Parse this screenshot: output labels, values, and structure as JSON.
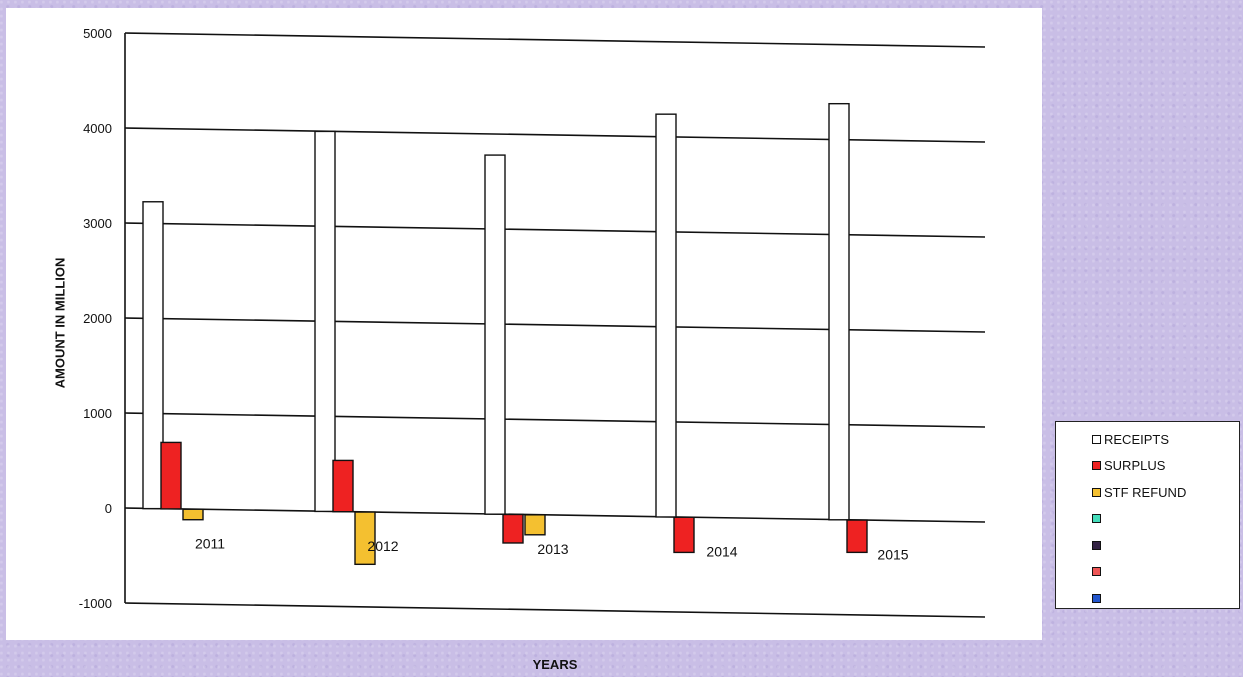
{
  "chart_data": {
    "type": "bar",
    "categories": [
      "2011",
      "2012",
      "2013",
      "2014",
      "2015"
    ],
    "series": [
      {
        "name": "RECEIPTS",
        "color": "#ffffff",
        "values": [
          3230,
          4000,
          3780,
          4240,
          4380
        ]
      },
      {
        "name": "SURPLUS",
        "color": "#ee2222",
        "values": [
          700,
          540,
          -300,
          -370,
          -340
        ]
      },
      {
        "name": "STF REFUND",
        "color": "#f4c030",
        "values": [
          -110,
          -550,
          -210,
          null,
          null
        ]
      }
    ],
    "legend_extra_colors": [
      "#44ddbb",
      "#332244",
      "#ee5555",
      "#2255cc"
    ],
    "yticks": [
      5000,
      4000,
      3000,
      2000,
      1000,
      0,
      -1000
    ],
    "ylim": [
      -1000,
      5000
    ],
    "xlabel": "YEARS",
    "ylabel": "AMOUNT IN MILLION",
    "grid": true,
    "legend_position": "bottom-right"
  }
}
